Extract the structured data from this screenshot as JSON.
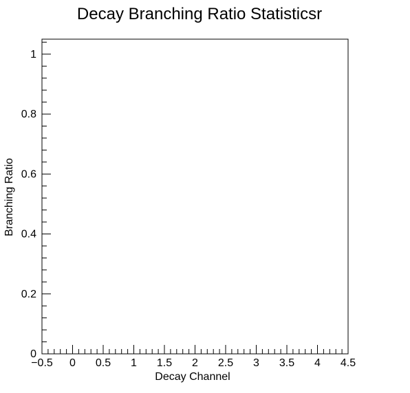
{
  "chart_data": {
    "type": "bar",
    "title": "Decay Branching Ratio Statisticsr",
    "xlabel": "Decay Channel",
    "ylabel": "Branching Ratio",
    "xlim": [
      -0.5,
      4.5
    ],
    "ylim": [
      0,
      1.05
    ],
    "x_tick_labels": [
      "−0.5",
      "0",
      "0.5",
      "1",
      "1.5",
      "2",
      "2.5",
      "3",
      "3.5",
      "4",
      "4.5"
    ],
    "y_tick_labels": [
      "0",
      "0.2",
      "0.4",
      "0.6",
      "0.8",
      "1"
    ],
    "series": [],
    "grid": false,
    "legend": "none"
  }
}
